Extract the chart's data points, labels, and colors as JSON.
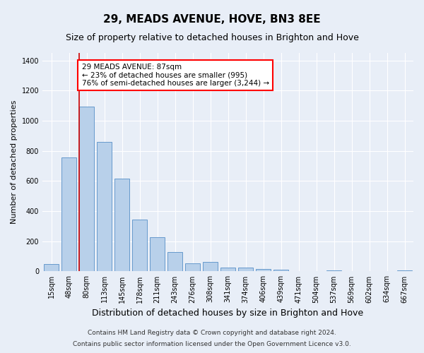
{
  "title": "29, MEADS AVENUE, HOVE, BN3 8EE",
  "subtitle": "Size of property relative to detached houses in Brighton and Hove",
  "xlabel": "Distribution of detached houses by size in Brighton and Hove",
  "ylabel": "Number of detached properties",
  "bar_labels": [
    "15sqm",
    "48sqm",
    "80sqm",
    "113sqm",
    "145sqm",
    "178sqm",
    "211sqm",
    "243sqm",
    "276sqm",
    "308sqm",
    "341sqm",
    "374sqm",
    "406sqm",
    "439sqm",
    "471sqm",
    "504sqm",
    "537sqm",
    "569sqm",
    "602sqm",
    "634sqm",
    "667sqm"
  ],
  "bar_values": [
    50,
    755,
    1095,
    860,
    615,
    345,
    225,
    130,
    55,
    65,
    25,
    25,
    18,
    10,
    0,
    0,
    8,
    0,
    0,
    0,
    8
  ],
  "bar_color": "#b8d0ea",
  "bar_edge_color": "#6699cc",
  "vline_x_bar_index": 2,
  "vline_color": "#cc0000",
  "annotation_text": "29 MEADS AVENUE: 87sqm\n← 23% of detached houses are smaller (995)\n76% of semi-detached houses are larger (3,244) →",
  "ylim": [
    0,
    1450
  ],
  "yticks": [
    0,
    200,
    400,
    600,
    800,
    1000,
    1200,
    1400
  ],
  "background_color": "#e8eef7",
  "plot_bg_color": "#e8eef7",
  "footer_line1": "Contains HM Land Registry data © Crown copyright and database right 2024.",
  "footer_line2": "Contains public sector information licensed under the Open Government Licence v3.0.",
  "title_fontsize": 11,
  "subtitle_fontsize": 9,
  "xlabel_fontsize": 9,
  "ylabel_fontsize": 8,
  "tick_fontsize": 7,
  "annotation_fontsize": 7.5,
  "footer_fontsize": 6.5
}
